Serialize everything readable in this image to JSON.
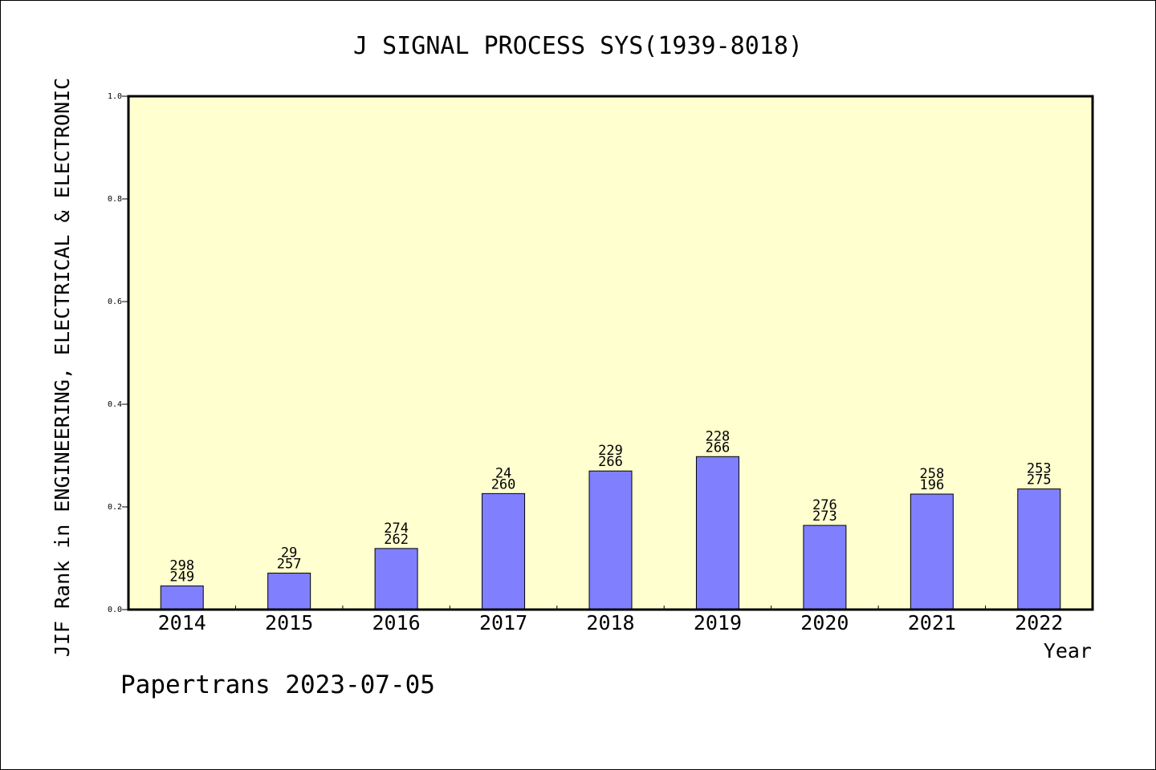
{
  "chart_data": {
    "type": "bar",
    "title": "J SIGNAL PROCESS SYS(1939-8018)",
    "xlabel": "Year",
    "ylabel": "JIF Rank in ENGINEERING, ELECTRICAL & ELECTRONIC",
    "categories": [
      "2014",
      "2015",
      "2016",
      "2017",
      "2018",
      "2019",
      "2020",
      "2021",
      "2022"
    ],
    "values": [
      0.046,
      0.071,
      0.119,
      0.226,
      0.27,
      0.298,
      0.164,
      0.225,
      0.235
    ],
    "labels_top": [
      "298",
      "29",
      "274",
      "24",
      "229",
      "228",
      "276",
      "258",
      "253"
    ],
    "labels_bottom": [
      "249",
      "257",
      "262",
      "260",
      "266",
      "266",
      "273",
      "196",
      "275"
    ],
    "ylim": [
      0,
      1.0
    ],
    "yticks": [
      "0.0",
      "0.2",
      "0.4",
      "0.6",
      "0.8",
      "1.0"
    ],
    "grid": false,
    "legend": "none",
    "colors": {
      "bar_fill": "#8080ff",
      "bar_stroke": "#000000",
      "plot_background": "#ffffd0",
      "page_background": "#ffffff"
    }
  },
  "footer": {
    "credit": "Papertrans 2023-07-05"
  }
}
